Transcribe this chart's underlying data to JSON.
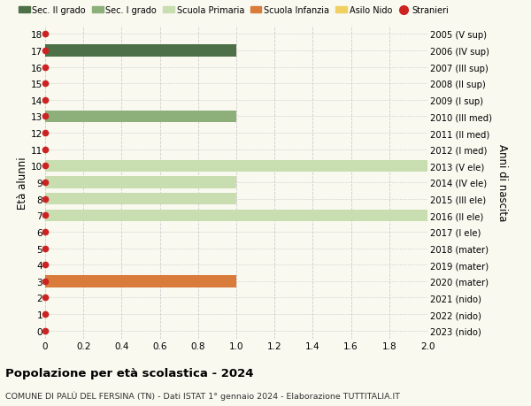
{
  "ages": [
    18,
    17,
    16,
    15,
    14,
    13,
    12,
    11,
    10,
    9,
    8,
    7,
    6,
    5,
    4,
    3,
    2,
    1,
    0
  ],
  "right_labels": [
    "2005 (V sup)",
    "2006 (IV sup)",
    "2007 (III sup)",
    "2008 (II sup)",
    "2009 (I sup)",
    "2010 (III med)",
    "2011 (II med)",
    "2012 (I med)",
    "2013 (V ele)",
    "2014 (IV ele)",
    "2015 (III ele)",
    "2016 (II ele)",
    "2017 (I ele)",
    "2018 (mater)",
    "2019 (mater)",
    "2020 (mater)",
    "2021 (nido)",
    "2022 (nido)",
    "2023 (nido)"
  ],
  "bars": [
    {
      "age": 17,
      "value": 1.0,
      "color": "#4d7048"
    },
    {
      "age": 13,
      "value": 1.0,
      "color": "#8db07a"
    },
    {
      "age": 10,
      "value": 2.0,
      "color": "#c8ddb0"
    },
    {
      "age": 9,
      "value": 1.0,
      "color": "#c8ddb0"
    },
    {
      "age": 8,
      "value": 1.0,
      "color": "#c8ddb0"
    },
    {
      "age": 7,
      "value": 2.0,
      "color": "#c8ddb0"
    },
    {
      "age": 3,
      "value": 1.0,
      "color": "#d97b3a"
    }
  ],
  "stranieri_ages": [
    18,
    17,
    16,
    15,
    14,
    13,
    12,
    11,
    10,
    9,
    8,
    7,
    6,
    5,
    4,
    3,
    2,
    1,
    0
  ],
  "legend": [
    {
      "label": "Sec. II grado",
      "color": "#4d7048",
      "type": "patch"
    },
    {
      "label": "Sec. I grado",
      "color": "#8db07a",
      "type": "patch"
    },
    {
      "label": "Scuola Primaria",
      "color": "#c8ddb0",
      "type": "patch"
    },
    {
      "label": "Scuola Infanzia",
      "color": "#d97b3a",
      "type": "patch"
    },
    {
      "label": "Asilo Nido",
      "color": "#f0d060",
      "type": "patch"
    },
    {
      "label": "Stranieri",
      "color": "#cc2222",
      "type": "dot"
    }
  ],
  "ylabel": "Età alunni",
  "right_ylabel": "Anni di nascita",
  "title": "Popolazione per età scolastica - 2024",
  "subtitle": "COMUNE DI PALÙ DEL FERSINA (TN) - Dati ISTAT 1° gennaio 2024 - Elaborazione TUTTITALIA.IT",
  "xlim": [
    0,
    2.0
  ],
  "ylim": [
    -0.5,
    18.5
  ],
  "bg_color": "#f9f9f0",
  "grid_color": "#cccccc",
  "stranieri_color": "#cc2222",
  "bar_height": 0.72
}
